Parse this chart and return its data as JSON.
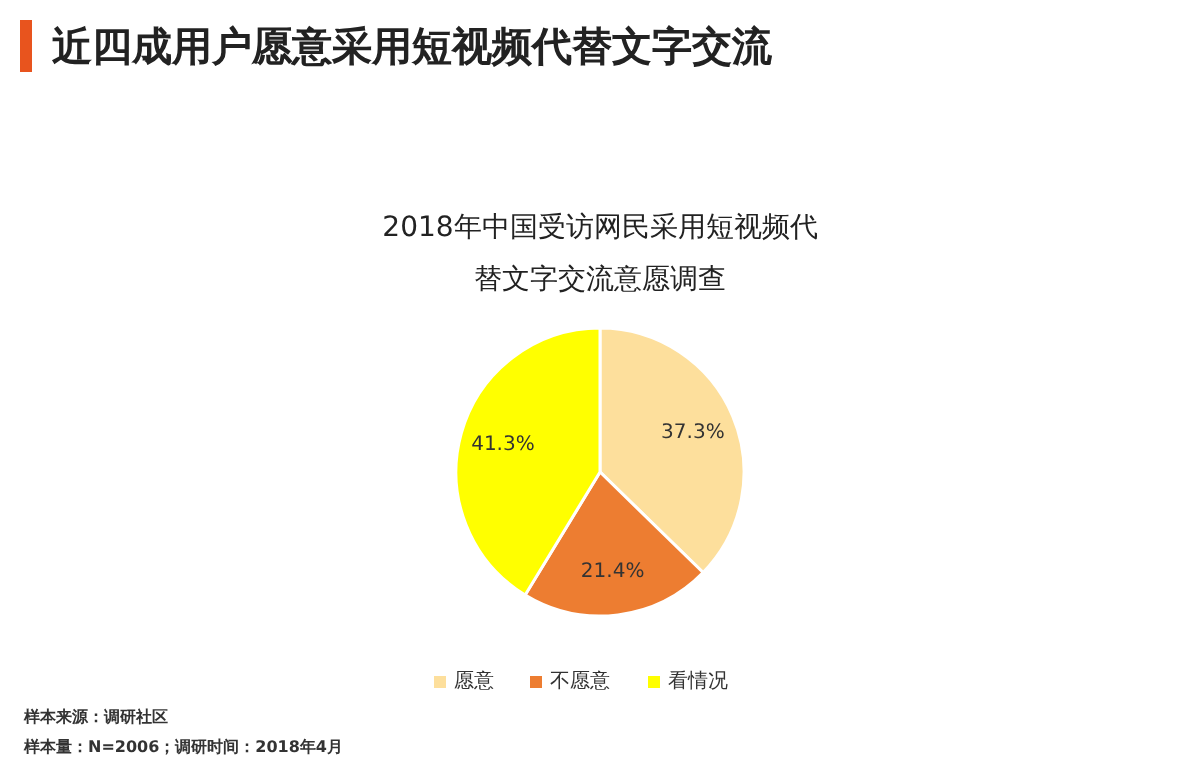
{
  "chart_data": {
    "type": "pie",
    "title": "近四成用户愿意采用短视频代替文字交流",
    "subtitle": "2018年中国受访网民采用短视频代替文字交流意愿调查",
    "categories": [
      "愿意",
      "不愿意",
      "看情况"
    ],
    "values": [
      37.3,
      21.4,
      41.3
    ],
    "colors": [
      "#fddf9c",
      "#ed7d31",
      "#ffff00"
    ],
    "value_labels": [
      "37.3%",
      "21.4%",
      "41.3%"
    ],
    "legend": "bottom",
    "annotations": [
      "样本来源：调研社区",
      "样本量：N=2006；调研时间：2018年4月"
    ]
  }
}
